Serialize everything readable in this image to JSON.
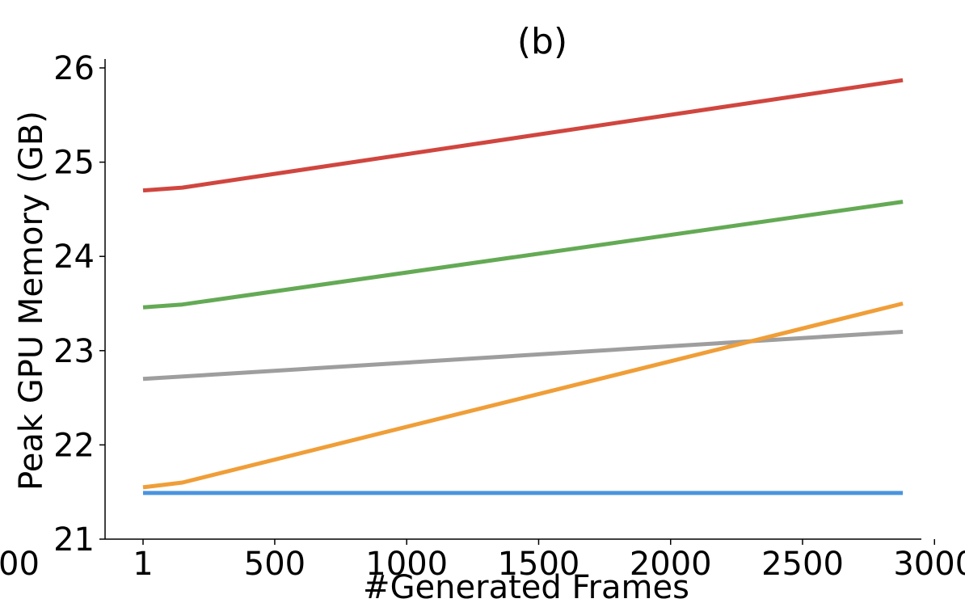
{
  "chart_data": {
    "type": "line",
    "title": "(b)",
    "xlabel": "#Generated Frames",
    "ylabel": "Peak GPU Memory (GB)",
    "xlim": [
      -150,
      3050
    ],
    "ylim": [
      21,
      26.1
    ],
    "xticks": [
      {
        "value": 1,
        "label": "1"
      },
      {
        "value": 500,
        "label": "500"
      },
      {
        "value": 1000,
        "label": "1000"
      },
      {
        "value": 1500,
        "label": "1500"
      },
      {
        "value": 2000,
        "label": "2000"
      },
      {
        "value": 2500,
        "label": "2500"
      },
      {
        "value": 3000,
        "label": "3000"
      }
    ],
    "yticks": [
      {
        "value": 21,
        "label": "21"
      },
      {
        "value": 22,
        "label": "22"
      },
      {
        "value": 23,
        "label": "23"
      },
      {
        "value": 24,
        "label": "24"
      },
      {
        "value": 25,
        "label": "25"
      },
      {
        "value": 26,
        "label": "26"
      }
    ],
    "stray_label": "00",
    "grid": false,
    "series": [
      {
        "name": "red",
        "color": "#d0463f",
        "x": [
          1,
          150,
          2880
        ],
        "y": [
          24.7,
          24.73,
          25.87
        ]
      },
      {
        "name": "green",
        "color": "#64aa55",
        "x": [
          1,
          150,
          2880
        ],
        "y": [
          23.46,
          23.49,
          24.58
        ]
      },
      {
        "name": "gray",
        "color": "#9e9e9e",
        "x": [
          1,
          2880
        ],
        "y": [
          22.7,
          23.2
        ]
      },
      {
        "name": "orange",
        "color": "#f09e38",
        "x": [
          1,
          150,
          2880
        ],
        "y": [
          21.55,
          21.6,
          23.5
        ]
      },
      {
        "name": "blue",
        "color": "#4a94df",
        "x": [
          1,
          2880
        ],
        "y": [
          21.49,
          21.49
        ]
      }
    ]
  }
}
